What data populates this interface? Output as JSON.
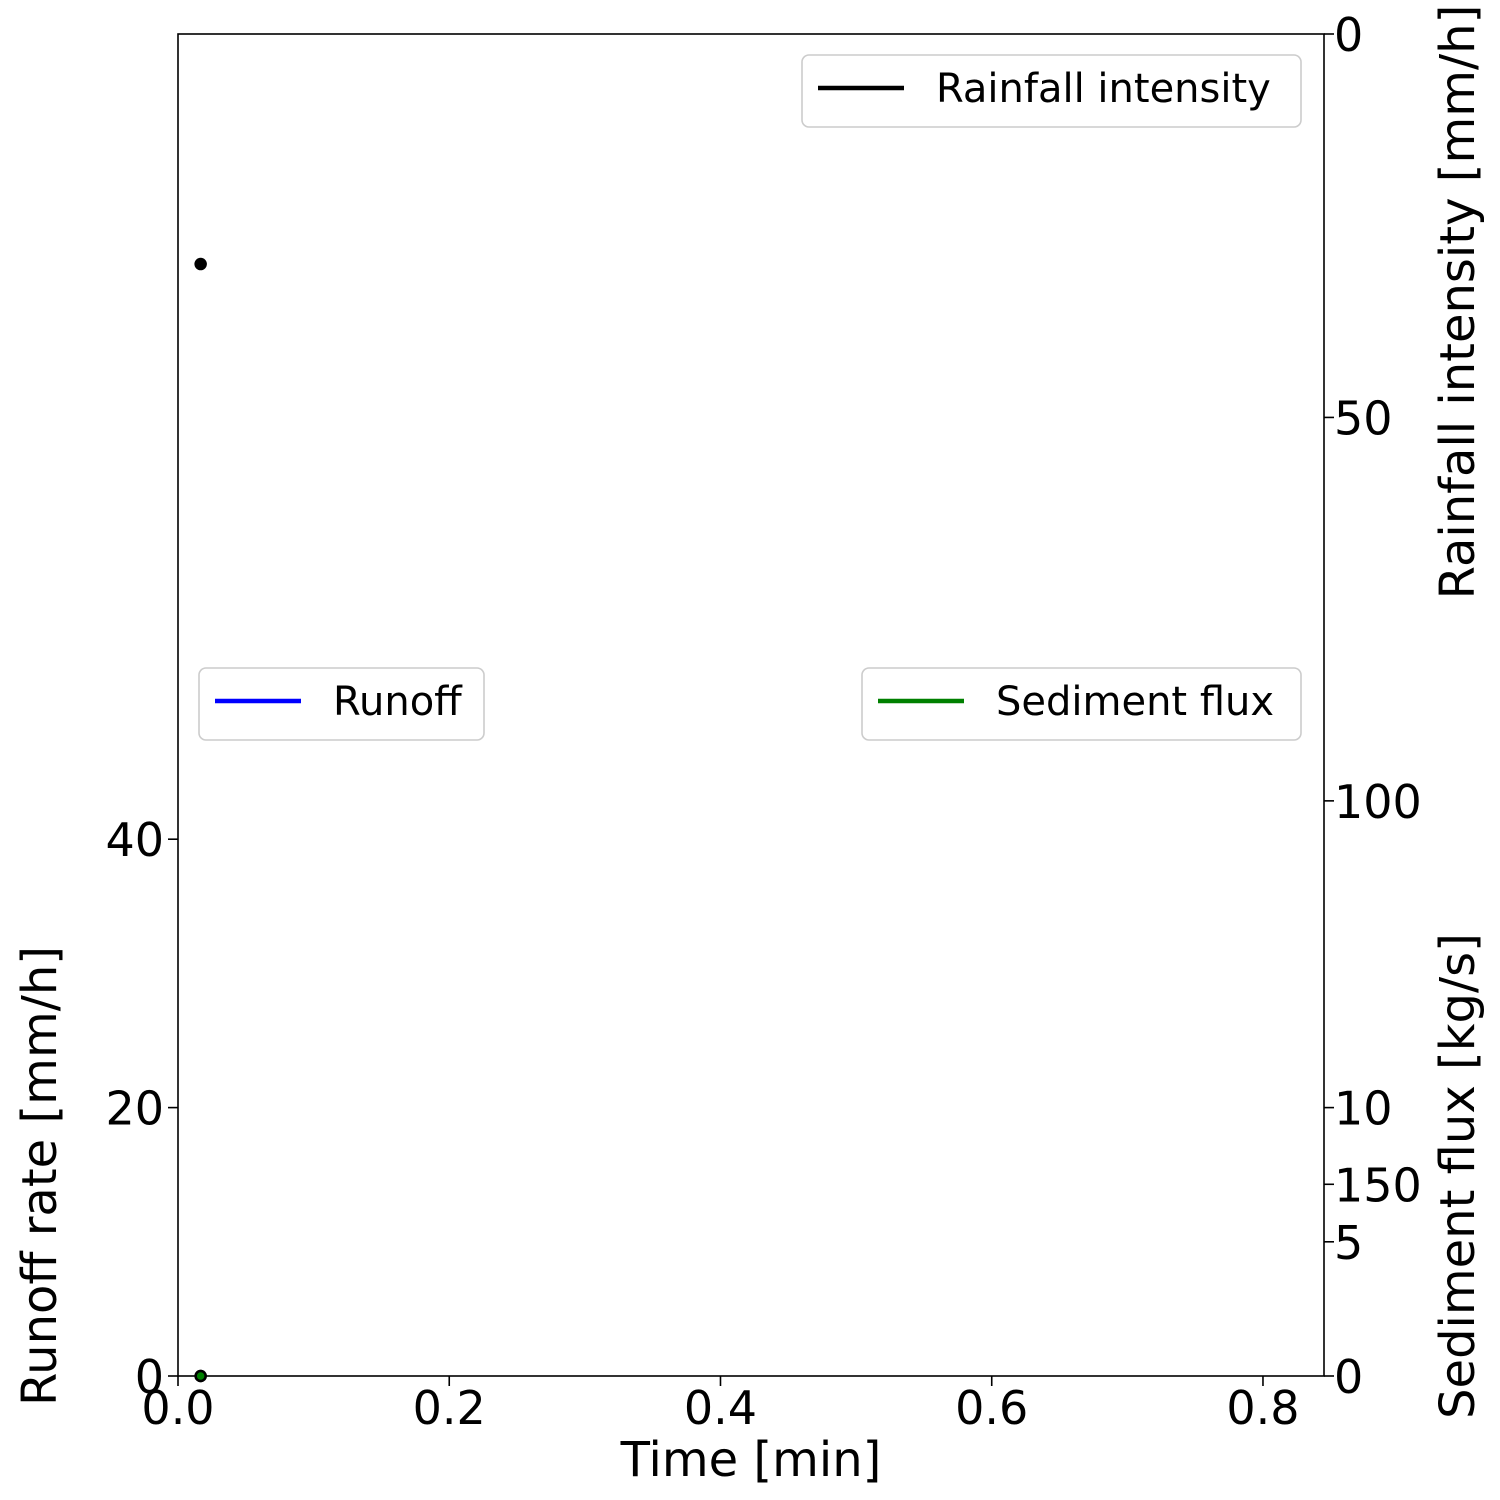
{
  "chart_data": {
    "type": "line",
    "xlabel": "Time [min]",
    "x_ticks": [
      "0.0",
      "0.2",
      "0.4",
      "0.6",
      "0.8"
    ],
    "xlim": [
      0,
      0.845
    ],
    "axes": {
      "runoff": {
        "ylabel": "Runoff rate [mm/h]",
        "ylim": [
          0,
          100
        ],
        "ticks": [
          "0",
          "20",
          "40"
        ]
      },
      "rainfall": {
        "ylabel": "Rainfall intensity [mm/h]",
        "ylim": [
          0,
          175
        ],
        "inverted": true,
        "ticks": [
          "0",
          "50",
          "100",
          "150"
        ]
      },
      "sediment": {
        "ylabel": "Sediment flux [kg/s]",
        "ylim": [
          0,
          50
        ],
        "ticks": [
          "0",
          "5",
          "10"
        ]
      }
    },
    "series": [
      {
        "name": "Rainfall intensity",
        "axis": "rainfall",
        "color": "#000000",
        "x": [
          0.0167
        ],
        "y": [
          30
        ]
      },
      {
        "name": "Runoff",
        "axis": "runoff",
        "color": "#0000ff",
        "x": [
          0.0167
        ],
        "y": [
          0
        ]
      },
      {
        "name": "Sediment flux",
        "axis": "sediment",
        "color": "#008000",
        "x": [
          0.0167
        ],
        "y": [
          0
        ]
      }
    ],
    "legends": [
      {
        "label": "Rainfall intensity",
        "color": "#000000",
        "placement": "upper-right"
      },
      {
        "label": "Runoff",
        "color": "#0000ff",
        "placement": "center-left"
      },
      {
        "label": "Sediment flux",
        "color": "#008000",
        "placement": "center-right"
      }
    ],
    "grid": false
  }
}
